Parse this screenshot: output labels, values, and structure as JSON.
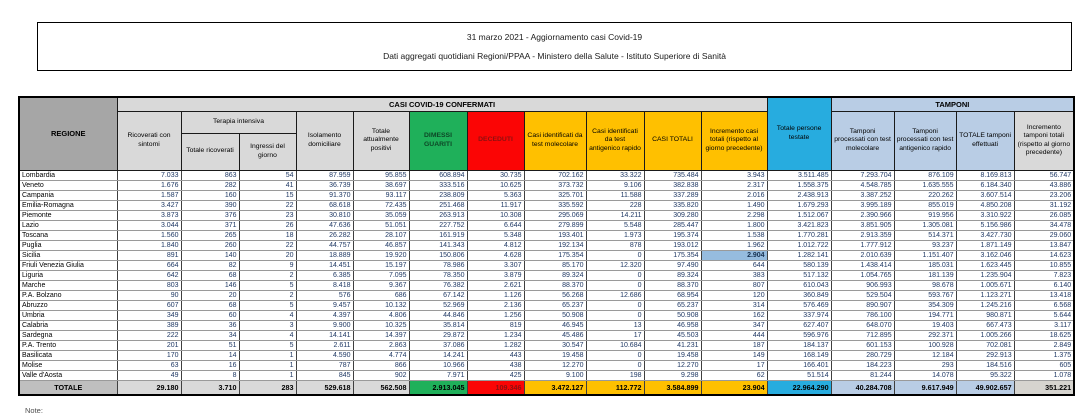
{
  "title": {
    "line1": "31 marzo 2021 - Aggiornamento casi Covid-19",
    "line2": "Dati aggregati quotidiani Regioni/PPAA - Ministero della Salute - Istituto Superiore di Sanità"
  },
  "note": "Note:",
  "colors": {
    "recovered_green": "#1fb05a",
    "deceased_red": "#fb0505",
    "cases_yellow": "#ffc000",
    "tested_cyan": "#27acdf",
    "tamponi_light_blue": "#b9cde5",
    "header_gray": "#d9d9d9",
    "regione_gray": "#a6a6a6",
    "selected_cell_blue": "#96bcdf",
    "number_text": "#1f3864"
  },
  "table": {
    "groups": {
      "confirmed": "CASI COVID-19 CONFERMATI",
      "tamponi": "TAMPONI"
    },
    "headers": {
      "regione": "REGIONE",
      "ricoverati": "Ricoverati con sintomi",
      "terapia": "Terapia intensiva",
      "totale_ricoverati": "Totale ricoverati",
      "ingressi": "Ingressi del giorno",
      "isolamento": "Isolamento domiciliare",
      "attualmente_positivi": "Totale attualmente positivi",
      "dimessi": "DIMESSI GUARITI",
      "deceduti": "DECEDUTI",
      "casi_molecolare": "Casi identificati da test molecolare",
      "casi_antigenico": "Casi identificati da test antigenico rapido",
      "casi_totali": "CASI TOTALI",
      "incremento_casi": "Incremento casi totali (rispetto al giorno precedente)",
      "persone_testate": "Totale persone testate",
      "tamponi_molecolare": "Tamponi processati con test molecolare",
      "tamponi_antigenico": "Tamponi processati con test antigenico rapido",
      "totale_tamponi": "TOTALE tamponi effettuati",
      "incremento_tamponi": "Incremento tamponi totali (rispetto al giorno precedente)"
    },
    "rows": [
      {
        "region": "Lombardia",
        "values": [
          "7.033",
          "863",
          "54",
          "87.959",
          "95.855",
          "608.894",
          "30.735",
          "702.162",
          "33.322",
          "735.484",
          "3.943",
          "3.511.485",
          "7.293.704",
          "876.109",
          "8.169.813",
          "56.747"
        ]
      },
      {
        "region": "Veneto",
        "values": [
          "1.676",
          "282",
          "41",
          "36.739",
          "38.697",
          "333.516",
          "10.625",
          "373.732",
          "9.106",
          "382.838",
          "2.317",
          "1.558.375",
          "4.548.785",
          "1.635.555",
          "6.184.340",
          "43.886"
        ]
      },
      {
        "region": "Campania",
        "values": [
          "1.587",
          "160",
          "15",
          "91.370",
          "93.117",
          "238.809",
          "5.363",
          "325.701",
          "11.588",
          "337.289",
          "2.016",
          "2.438.913",
          "3.387.252",
          "220.262",
          "3.607.514",
          "23.206"
        ]
      },
      {
        "region": "Emilia-Romagna",
        "values": [
          "3.427",
          "390",
          "22",
          "68.618",
          "72.435",
          "251.468",
          "11.917",
          "335.592",
          "228",
          "335.820",
          "1.490",
          "1.679.293",
          "3.995.189",
          "855.019",
          "4.850.208",
          "31.192"
        ]
      },
      {
        "region": "Piemonte",
        "values": [
          "3.873",
          "376",
          "23",
          "30.810",
          "35.059",
          "263.913",
          "10.308",
          "295.069",
          "14.211",
          "309.280",
          "2.298",
          "1.512.067",
          "2.390.966",
          "919.956",
          "3.310.922",
          "26.085"
        ]
      },
      {
        "region": "Lazio",
        "values": [
          "3.044",
          "371",
          "26",
          "47.636",
          "51.051",
          "227.752",
          "6.644",
          "279.899",
          "5.548",
          "285.447",
          "1.800",
          "3.421.823",
          "3.851.905",
          "1.305.081",
          "5.156.986",
          "34.478"
        ]
      },
      {
        "region": "Toscana",
        "values": [
          "1.560",
          "265",
          "18",
          "26.282",
          "28.107",
          "161.919",
          "5.348",
          "193.401",
          "1.973",
          "195.374",
          "1.538",
          "1.770.281",
          "2.913.359",
          "514.371",
          "3.427.730",
          "29.060"
        ]
      },
      {
        "region": "Puglia",
        "values": [
          "1.840",
          "260",
          "22",
          "44.757",
          "46.857",
          "141.343",
          "4.812",
          "192.134",
          "878",
          "193.012",
          "1.962",
          "1.012.722",
          "1.777.912",
          "93.237",
          "1.871.149",
          "13.847"
        ]
      },
      {
        "region": "Sicilia",
        "highlight_col": 10,
        "values": [
          "891",
          "140",
          "20",
          "18.889",
          "19.920",
          "150.806",
          "4.628",
          "175.354",
          "0",
          "175.354",
          "2.904",
          "1.282.141",
          "2.010.639",
          "1.151.407",
          "3.162.046",
          "14.623"
        ]
      },
      {
        "region": "Friuli Venezia Giulia",
        "values": [
          "664",
          "82",
          "9",
          "14.451",
          "15.197",
          "78.986",
          "3.307",
          "85.170",
          "12.320",
          "97.490",
          "644",
          "580.139",
          "1.438.414",
          "185.031",
          "1.623.445",
          "10.855"
        ]
      },
      {
        "region": "Liguria",
        "values": [
          "642",
          "68",
          "2",
          "6.385",
          "7.095",
          "78.350",
          "3.879",
          "89.324",
          "0",
          "89.324",
          "383",
          "517.132",
          "1.054.765",
          "181.139",
          "1.235.904",
          "7.823"
        ]
      },
      {
        "region": "Marche",
        "values": [
          "803",
          "146",
          "5",
          "8.418",
          "9.367",
          "76.382",
          "2.621",
          "88.370",
          "0",
          "88.370",
          "807",
          "610.043",
          "906.993",
          "98.678",
          "1.005.671",
          "6.140"
        ]
      },
      {
        "region": "P.A. Bolzano",
        "values": [
          "90",
          "20",
          "2",
          "576",
          "686",
          "67.142",
          "1.126",
          "56.268",
          "12.686",
          "68.954",
          "120",
          "360.849",
          "529.504",
          "593.767",
          "1.123.271",
          "13.418"
        ]
      },
      {
        "region": "Abruzzo",
        "values": [
          "607",
          "68",
          "5",
          "9.457",
          "10.132",
          "52.969",
          "2.136",
          "65.237",
          "0",
          "65.237",
          "314",
          "576.469",
          "890.907",
          "354.309",
          "1.245.216",
          "6.568"
        ]
      },
      {
        "region": "Umbria",
        "values": [
          "349",
          "60",
          "4",
          "4.397",
          "4.806",
          "44.846",
          "1.256",
          "50.908",
          "0",
          "50.908",
          "162",
          "337.974",
          "786.100",
          "194.771",
          "980.871",
          "5.644"
        ]
      },
      {
        "region": "Calabria",
        "values": [
          "389",
          "36",
          "3",
          "9.900",
          "10.325",
          "35.814",
          "819",
          "46.945",
          "13",
          "46.958",
          "347",
          "627.407",
          "648.070",
          "19.403",
          "667.473",
          "3.117"
        ]
      },
      {
        "region": "Sardegna",
        "values": [
          "222",
          "34",
          "4",
          "14.141",
          "14.397",
          "29.872",
          "1.234",
          "45.486",
          "17",
          "45.503",
          "444",
          "596.976",
          "712.895",
          "292.371",
          "1.005.266",
          "18.625"
        ]
      },
      {
        "region": "P.A. Trento",
        "values": [
          "201",
          "51",
          "5",
          "2.611",
          "2.863",
          "37.086",
          "1.282",
          "30.547",
          "10.684",
          "41.231",
          "187",
          "184.137",
          "601.153",
          "100.928",
          "702.081",
          "2.849"
        ]
      },
      {
        "region": "Basilicata",
        "values": [
          "170",
          "14",
          "1",
          "4.590",
          "4.774",
          "14.241",
          "443",
          "19.458",
          "0",
          "19.458",
          "149",
          "168.149",
          "280.729",
          "12.184",
          "292.913",
          "1.375"
        ]
      },
      {
        "region": "Molise",
        "values": [
          "63",
          "16",
          "1",
          "787",
          "866",
          "10.966",
          "438",
          "12.270",
          "0",
          "12.270",
          "17",
          "166.401",
          "184.223",
          "293",
          "184.516",
          "605"
        ]
      },
      {
        "region": "Valle d'Aosta",
        "values": [
          "49",
          "8",
          "1",
          "845",
          "902",
          "7.971",
          "425",
          "9.100",
          "198",
          "9.298",
          "62",
          "51.514",
          "81.244",
          "14.078",
          "95.322",
          "1.078"
        ]
      }
    ],
    "total": {
      "region": "TOTALE",
      "values": [
        "29.180",
        "3.710",
        "283",
        "529.618",
        "562.508",
        "2.913.045",
        "109.346",
        "3.472.127",
        "112.772",
        "3.584.899",
        "23.904",
        "22.964.290",
        "40.284.708",
        "9.617.949",
        "49.902.657",
        "351.221"
      ]
    }
  }
}
